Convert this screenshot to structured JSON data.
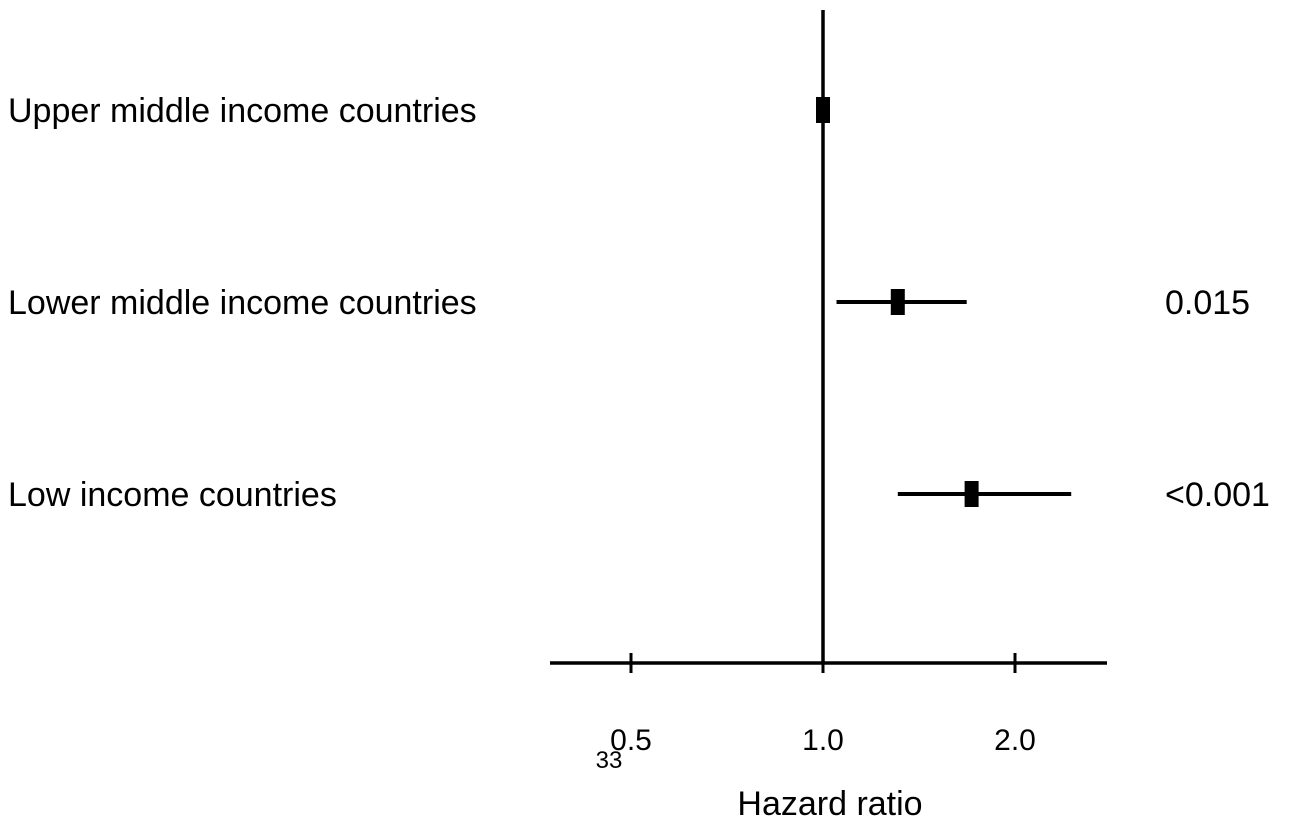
{
  "chart_data": {
    "type": "forest",
    "scale": "log",
    "xlabel": "Hazard ratio",
    "xlim": [
      0.5,
      2.5
    ],
    "reference_line": 1.0,
    "ticks": [
      {
        "value": 0.5,
        "label": "0.5"
      },
      {
        "value": 1.0,
        "label": "1.0"
      },
      {
        "value": 2.0,
        "label": "2.0"
      }
    ],
    "page_marker": "33",
    "categories": [
      "Upper middle income countries",
      "Lower middle income countries",
      "Low income countries"
    ],
    "estimates": [
      {
        "hr": 1.0,
        "ci_low": 1.0,
        "ci_high": 1.0,
        "p": ""
      },
      {
        "hr": 1.31,
        "ci_low": 1.05,
        "ci_high": 1.68,
        "p": "0.015"
      },
      {
        "hr": 1.71,
        "ci_low": 1.31,
        "ci_high": 2.45,
        "p": "<0.001"
      }
    ],
    "grid": false,
    "legend": "none"
  }
}
